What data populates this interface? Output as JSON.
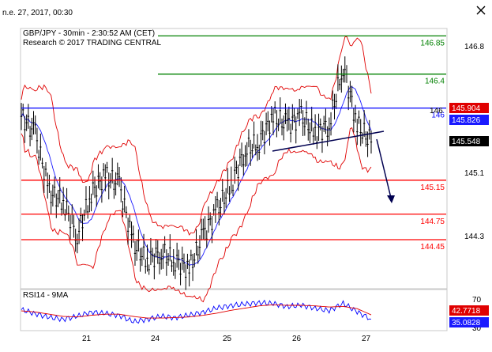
{
  "window": {
    "date_time": "n.e. 27, 2017, 00:30"
  },
  "colors": {
    "price": "#000000",
    "bollinger": "#e00000",
    "moving_average": "#1a1aff",
    "support_resistance": "#ff0000",
    "target_lines": "#008000",
    "pivot_line": "#0000ff",
    "trendline": "#000050",
    "rsi": "#0000ff",
    "rsi_ma": "#e00000",
    "current_price_bg": "#000000",
    "bb_upper_bg": "#e00000",
    "ma_bg": "#1a1aff",
    "rsi_tag_bg": "#e00000",
    "rsi_ma_tag_bg": "#1a1aff"
  },
  "icons": {
    "close": "x-icon"
  },
  "chart_data": [
    {
      "type": "candlestick",
      "title": "GBP/JPY - 30min - 2:30:52 AM (CET)",
      "subtitle": "Research © 2017 TRADING CENTRAL",
      "x_ticks": [
        "21",
        "24",
        "25",
        "26",
        "27"
      ],
      "y_ticks": [
        "146.8",
        "146",
        "145.1",
        "144.3"
      ],
      "ylim": [
        143.9,
        146.9
      ],
      "price_series": [
        145.9,
        145.7,
        145.0,
        144.9,
        144.5,
        145.0,
        145.2,
        145.1,
        144.4,
        144.2,
        144.3,
        144.2,
        144.1,
        144.5,
        144.8,
        145.1,
        145.5,
        145.6,
        145.9,
        145.8,
        145.9,
        145.7,
        145.8,
        146.5,
        145.8,
        145.6
      ],
      "levels": [
        {
          "label": "146.85",
          "value": 146.85,
          "kind": "target"
        },
        {
          "label": "146.4",
          "value": 146.4,
          "kind": "target"
        },
        {
          "label": "146",
          "value": 146.0,
          "kind": "pivot"
        },
        {
          "label": "145.15",
          "value": 145.15,
          "kind": "support"
        },
        {
          "label": "144.75",
          "value": 144.75,
          "kind": "support"
        },
        {
          "label": "144.45",
          "value": 144.45,
          "kind": "support"
        }
      ],
      "price_tags": [
        {
          "label": "145.904",
          "value": 145.904,
          "kind": "bb_upper"
        },
        {
          "label": "145.826",
          "value": 145.826,
          "kind": "ma"
        },
        {
          "label": "145.548",
          "value": 145.548,
          "kind": "current"
        }
      ]
    },
    {
      "type": "line",
      "title": "RSI14 - 9MA",
      "y_ticks": [
        "70",
        "30"
      ],
      "ylim": [
        20,
        80
      ],
      "series": [
        {
          "values": [
            52,
            45,
            38,
            35,
            40,
            48,
            45,
            42,
            30,
            35,
            40,
            38,
            42,
            48,
            55,
            60,
            62,
            65,
            63,
            58,
            60,
            55,
            50,
            64,
            48,
            35.0828
          ]
        },
        {
          "values": [
            50,
            48,
            44,
            40,
            39,
            42,
            44,
            44,
            40,
            37,
            37,
            38,
            39,
            42,
            46,
            51,
            55,
            59,
            61,
            60,
            60,
            59,
            57,
            58,
            54,
            42.7718
          ]
        }
      ],
      "tags": [
        {
          "label": "42.7718",
          "value": 42.7718
        },
        {
          "label": "35.0828",
          "value": 35.0828
        }
      ]
    }
  ]
}
